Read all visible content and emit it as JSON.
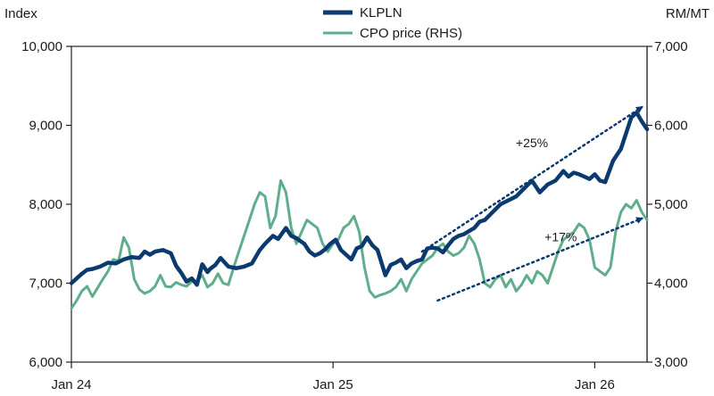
{
  "chart_data": {
    "type": "line",
    "left_axis": {
      "title": "Index",
      "min": 6000,
      "max": 10000,
      "ticks": [
        "6,000",
        "7,000",
        "8,000",
        "9,000",
        "10,000"
      ],
      "tick_values": [
        6000,
        7000,
        8000,
        9000,
        10000
      ]
    },
    "right_axis": {
      "title": "RM/MT",
      "min": 3000,
      "max": 7000,
      "ticks": [
        "3,000",
        "4,000",
        "5,000",
        "6,000",
        "7,000"
      ],
      "tick_values": [
        3000,
        4000,
        5000,
        6000,
        7000
      ]
    },
    "x_axis": {
      "min": 0,
      "max": 2.2,
      "ticks": [
        "Jan 24",
        "Jan 25",
        "Jan 26"
      ],
      "tick_values": [
        0,
        1,
        2
      ]
    },
    "legend": {
      "position": "top-center"
    },
    "series": [
      {
        "name": "KLPLN",
        "axis": "left",
        "color": "#0b3a6e",
        "x": [
          0.0,
          0.04,
          0.06,
          0.08,
          0.11,
          0.14,
          0.17,
          0.2,
          0.23,
          0.26,
          0.28,
          0.3,
          0.32,
          0.35,
          0.38,
          0.4,
          0.42,
          0.44,
          0.46,
          0.48,
          0.5,
          0.52,
          0.53,
          0.55,
          0.57,
          0.6,
          0.63,
          0.66,
          0.69,
          0.72,
          0.74,
          0.77,
          0.79,
          0.82,
          0.84,
          0.86,
          0.89,
          0.91,
          0.93,
          0.95,
          0.97,
          0.99,
          1.01,
          1.03,
          1.05,
          1.07,
          1.09,
          1.11,
          1.13,
          1.15,
          1.17,
          1.2,
          1.22,
          1.24,
          1.26,
          1.28,
          1.3,
          1.32,
          1.34,
          1.36,
          1.38,
          1.4,
          1.42,
          1.44,
          1.46,
          1.48,
          1.5,
          1.52,
          1.54,
          1.56,
          1.58,
          1.61,
          1.64,
          1.67,
          1.7,
          1.73,
          1.76,
          1.79,
          1.82,
          1.85,
          1.88,
          1.9,
          1.92,
          1.94,
          1.96,
          1.98,
          2.0,
          2.02,
          2.04,
          2.07,
          2.1,
          2.12,
          2.14,
          2.16,
          2.18,
          2.2
        ],
        "values": [
          7000,
          7120,
          7170,
          7180,
          7210,
          7260,
          7250,
          7300,
          7330,
          7320,
          7400,
          7360,
          7400,
          7420,
          7380,
          7220,
          7130,
          7020,
          7060,
          6980,
          7240,
          7140,
          7180,
          7230,
          7320,
          7210,
          7190,
          7210,
          7250,
          7420,
          7500,
          7600,
          7560,
          7700,
          7600,
          7570,
          7500,
          7400,
          7350,
          7380,
          7430,
          7500,
          7550,
          7420,
          7360,
          7300,
          7440,
          7470,
          7580,
          7480,
          7420,
          7100,
          7230,
          7260,
          7300,
          7190,
          7250,
          7280,
          7300,
          7440,
          7450,
          7440,
          7390,
          7480,
          7560,
          7600,
          7620,
          7660,
          7700,
          7780,
          7800,
          7900,
          8000,
          8050,
          8100,
          8200,
          8300,
          8150,
          8250,
          8300,
          8420,
          8350,
          8400,
          8380,
          8350,
          8320,
          8380,
          8300,
          8280,
          8550,
          8700,
          8900,
          9100,
          9160,
          9050,
          8950
        ]
      },
      {
        "name": "CPO price (RHS)",
        "axis": "right",
        "color": "#5fae8b",
        "x": [
          0.0,
          0.02,
          0.04,
          0.06,
          0.08,
          0.1,
          0.12,
          0.14,
          0.16,
          0.18,
          0.2,
          0.22,
          0.24,
          0.26,
          0.28,
          0.3,
          0.32,
          0.34,
          0.36,
          0.38,
          0.4,
          0.42,
          0.44,
          0.46,
          0.48,
          0.5,
          0.52,
          0.54,
          0.56,
          0.58,
          0.6,
          0.62,
          0.64,
          0.66,
          0.68,
          0.7,
          0.72,
          0.74,
          0.76,
          0.78,
          0.8,
          0.82,
          0.84,
          0.86,
          0.88,
          0.9,
          0.92,
          0.94,
          0.96,
          0.98,
          1.0,
          1.02,
          1.04,
          1.06,
          1.08,
          1.1,
          1.12,
          1.14,
          1.16,
          1.18,
          1.2,
          1.22,
          1.24,
          1.26,
          1.28,
          1.3,
          1.32,
          1.34,
          1.36,
          1.38,
          1.4,
          1.42,
          1.44,
          1.46,
          1.48,
          1.5,
          1.52,
          1.54,
          1.56,
          1.58,
          1.6,
          1.62,
          1.64,
          1.66,
          1.68,
          1.7,
          1.72,
          1.74,
          1.76,
          1.78,
          1.8,
          1.82,
          1.84,
          1.86,
          1.88,
          1.9,
          1.92,
          1.94,
          1.96,
          1.98,
          2.0,
          2.02,
          2.04,
          2.06,
          2.08,
          2.1,
          2.12,
          2.14,
          2.16,
          2.18,
          2.2
        ],
        "values": [
          3680,
          3780,
          3900,
          3960,
          3830,
          3940,
          4050,
          4150,
          4300,
          4280,
          4580,
          4450,
          4050,
          3920,
          3870,
          3900,
          3960,
          4100,
          3960,
          3950,
          4010,
          3980,
          3960,
          4020,
          4030,
          4100,
          3950,
          4000,
          4120,
          4000,
          3980,
          4200,
          4400,
          4600,
          4800,
          5000,
          5150,
          5100,
          4700,
          4850,
          5300,
          5150,
          4700,
          4500,
          4650,
          4800,
          4750,
          4700,
          4500,
          4400,
          4500,
          4550,
          4700,
          4750,
          4850,
          4650,
          4200,
          3900,
          3820,
          3850,
          3870,
          3900,
          3950,
          4050,
          3900,
          4050,
          4150,
          4250,
          4300,
          4350,
          4450,
          4500,
          4400,
          4350,
          4380,
          4450,
          4600,
          4500,
          4300,
          4000,
          3950,
          4050,
          4100,
          3950,
          4050,
          3900,
          3980,
          4100,
          4000,
          4150,
          4100,
          4000,
          4200,
          4400,
          4550,
          4600,
          4650,
          4750,
          4700,
          4550,
          4200,
          4150,
          4100,
          4200,
          4650,
          4900,
          5000,
          4950,
          5050,
          4900,
          4800
        ]
      }
    ],
    "annotations": [
      {
        "text": "+25%",
        "from": [
          1.34,
          7400
        ],
        "to": [
          2.18,
          9230
        ],
        "label_at": [
          1.76,
          8780
        ]
      },
      {
        "text": "+17%",
        "from": [
          1.4,
          6780
        ],
        "to": [
          2.18,
          7820
        ],
        "label_at": [
          1.87,
          7590
        ]
      }
    ]
  }
}
